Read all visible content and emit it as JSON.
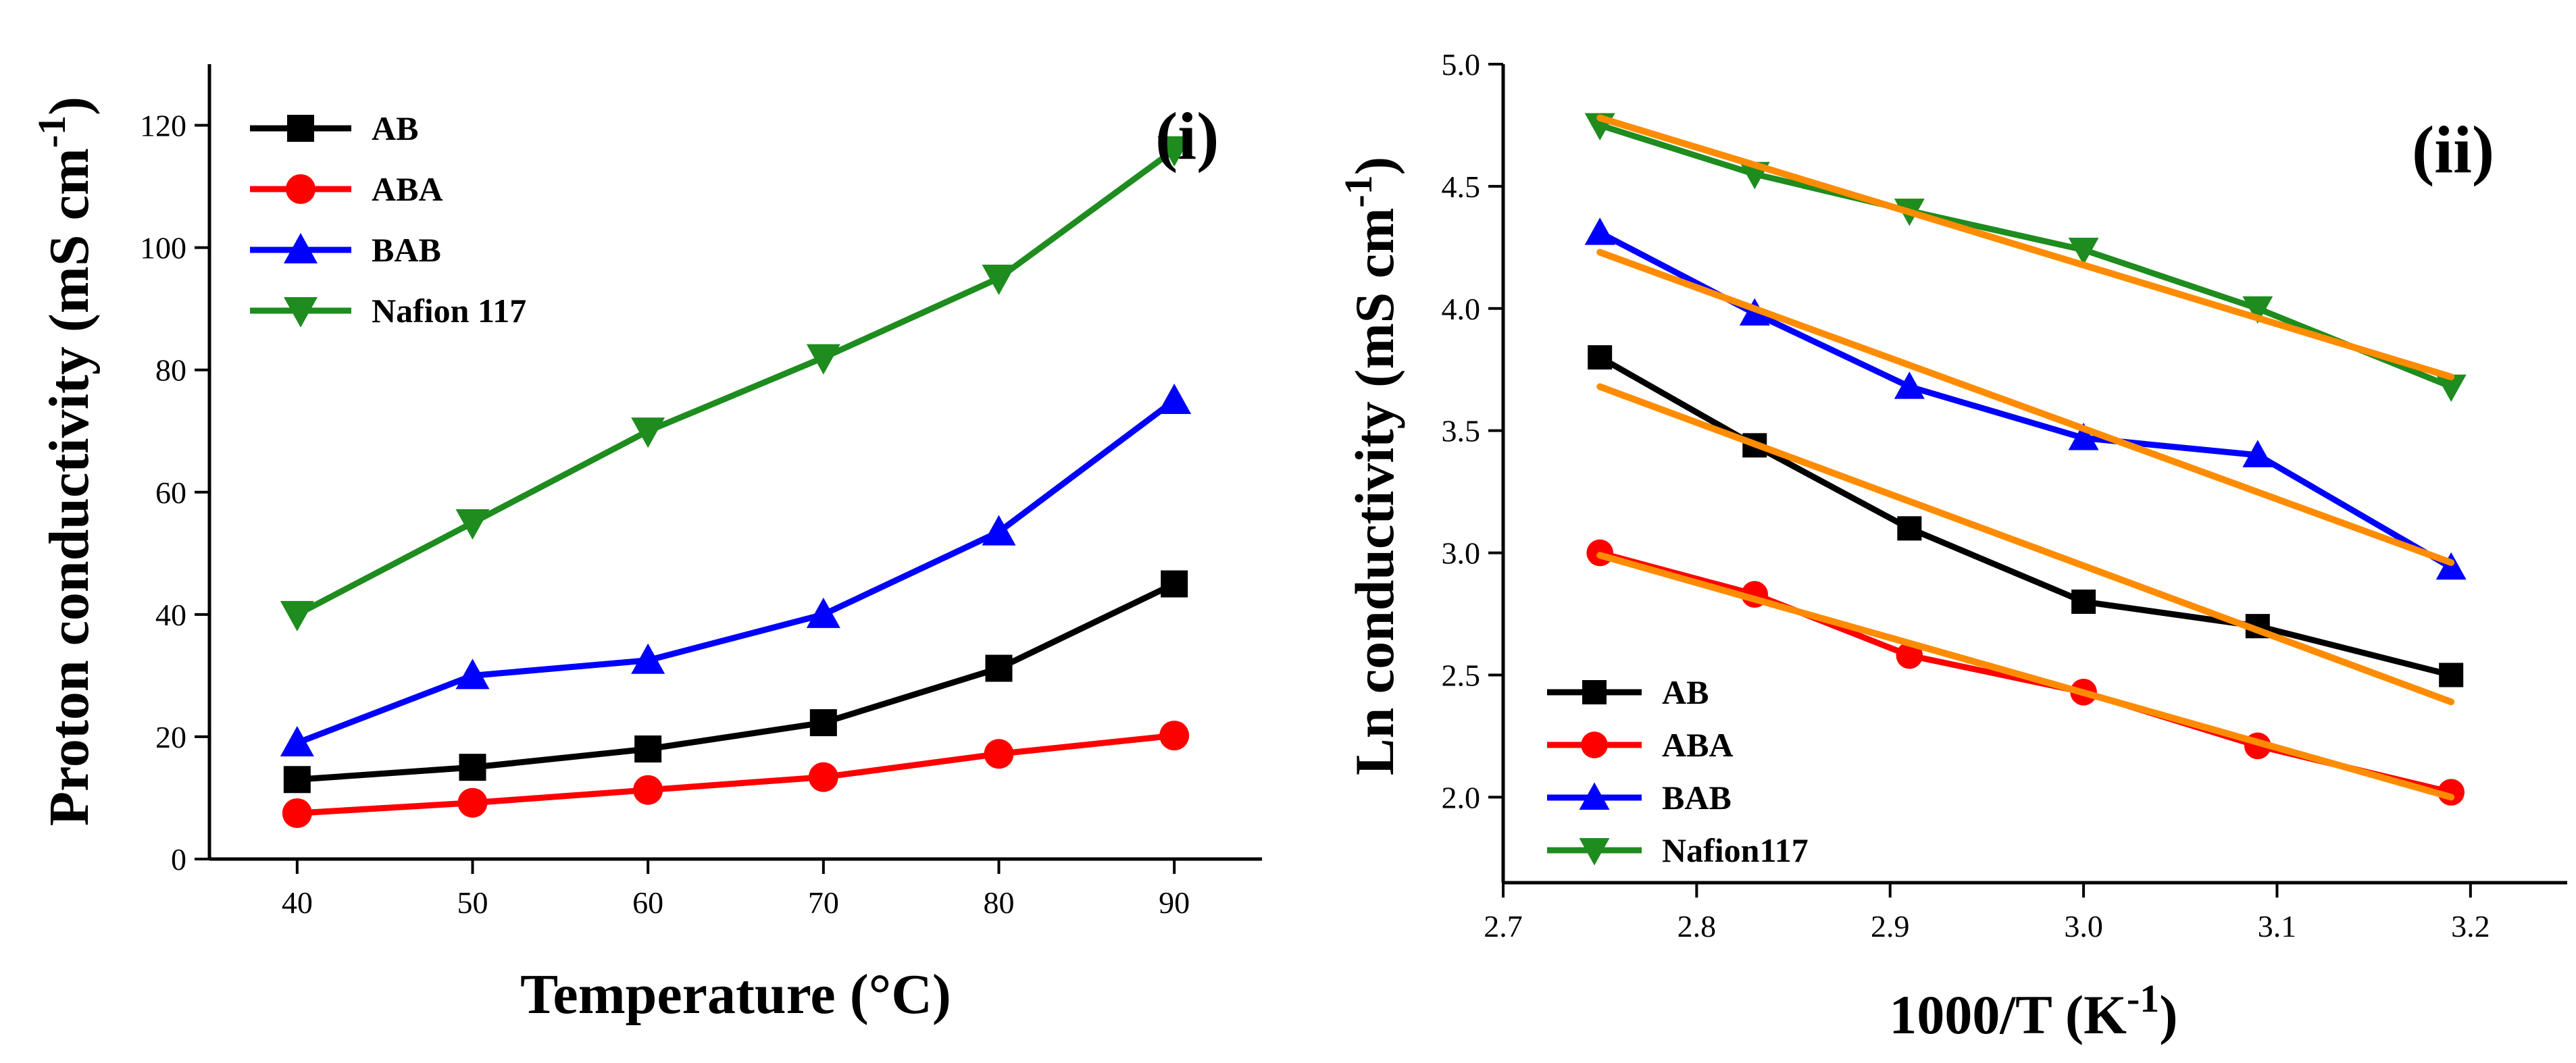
{
  "chart_data": [
    {
      "type": "line",
      "panel_label": "(i)",
      "xlabel": "Temperature (°C)",
      "ylabel_main": "Proton conductivity (mS cm",
      "ylabel_sup": "-1",
      "ylabel_close": ")",
      "xlim": [
        35,
        95
      ],
      "ylim": [
        0,
        130
      ],
      "x_ticks": [
        40,
        50,
        60,
        70,
        80,
        90
      ],
      "y_ticks": [
        0,
        20,
        40,
        60,
        80,
        100,
        120
      ],
      "legend_position": "top-left",
      "x": [
        40,
        50,
        60,
        70,
        80,
        90
      ],
      "series": [
        {
          "name": "AB",
          "color": "#000000",
          "marker": "square",
          "values": [
            13,
            15,
            18,
            22.3,
            31.2,
            45
          ]
        },
        {
          "name": "ABA",
          "color": "#ff0000",
          "marker": "circle",
          "values": [
            7.5,
            9.2,
            11.3,
            13.4,
            17.2,
            20.2
          ]
        },
        {
          "name": "BAB",
          "color": "#0000ff",
          "marker": "triangle-up",
          "values": [
            19,
            30,
            32.5,
            40,
            53.5,
            75
          ]
        },
        {
          "name": "Nafion 117",
          "color": "#1e8c1e",
          "marker": "triangle-down",
          "values": [
            40,
            55,
            70,
            82,
            95,
            116
          ]
        }
      ]
    },
    {
      "type": "line",
      "panel_label": "(ii)",
      "xlabel_main": "1000/T (K",
      "xlabel_sup": "-1",
      "xlabel_close": ")",
      "ylabel_main": "Ln conductivity (mS cm",
      "ylabel_sup": "-1",
      "ylabel_close": ")",
      "xlim": [
        2.7,
        3.25
      ],
      "ylim": [
        1.65,
        5.0
      ],
      "x_ticks": [
        "2.7",
        "2.8",
        "2.9",
        "3.0",
        "3.1",
        "3.2"
      ],
      "y_ticks": [
        "2.0",
        "2.5",
        "3.0",
        "3.5",
        "4.0",
        "4.5",
        "5.0"
      ],
      "legend_position": "bottom-left",
      "x": [
        2.75,
        2.83,
        2.91,
        3.0,
        3.09,
        3.19
      ],
      "series": [
        {
          "name": "AB",
          "color": "#000000",
          "marker": "square",
          "values": [
            3.8,
            3.44,
            3.1,
            2.8,
            2.7,
            2.5
          ],
          "fit": [
            3.68,
            2.39
          ]
        },
        {
          "name": "ABA",
          "color": "#ff0000",
          "marker": "circle",
          "values": [
            3.0,
            2.83,
            2.58,
            2.43,
            2.21,
            2.02
          ],
          "fit": [
            2.99,
            2.0
          ]
        },
        {
          "name": "BAB",
          "color": "#0000ff",
          "marker": "triangle-up",
          "values": [
            4.31,
            3.98,
            3.68,
            3.47,
            3.4,
            2.94
          ],
          "fit": [
            4.23,
            2.96
          ]
        },
        {
          "name": "Nafion117",
          "color": "#1e8c1e",
          "marker": "triangle-down",
          "values": [
            4.75,
            4.55,
            4.4,
            4.24,
            4.0,
            3.68
          ],
          "fit": [
            4.78,
            3.72
          ]
        }
      ],
      "fit_color": "#ff8c00",
      "fit_x": [
        2.75,
        3.19
      ]
    }
  ]
}
